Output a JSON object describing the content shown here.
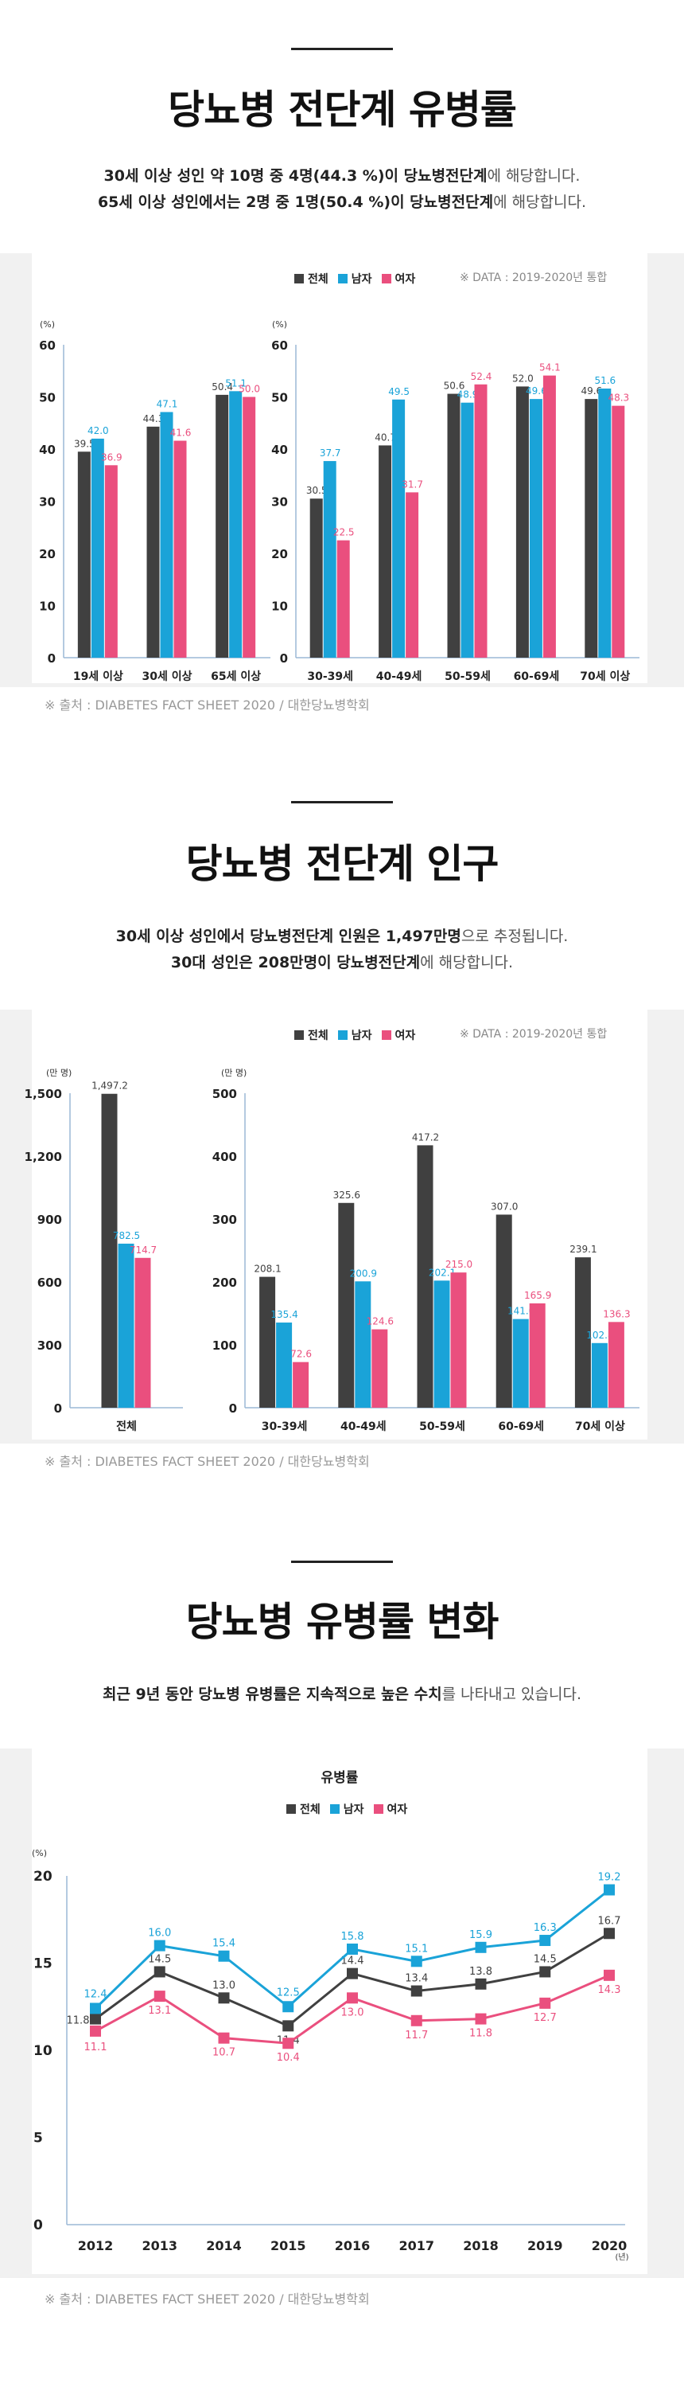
{
  "colors": {
    "total": "#404040",
    "male": "#1aa3d8",
    "female": "#ea4f7e",
    "background": "#f1f1f1"
  },
  "section1": {
    "title": "당뇨병 전단계 유병률",
    "desc_line1": {
      "a": "30세 이상 성인 약 10명 중 4명(44.3 %)이 당뇨병전단계",
      "b": "에 해당합니다."
    },
    "desc_line2": {
      "a": "65세 이상 성인에서는 2명 중 1명(50.4 %)이 당뇨병전단계",
      "b": "에 해당합니다."
    },
    "legend": {
      "total": "전체",
      "male": "남자",
      "female": "여자"
    },
    "data_note": "※ DATA : 2019-2020년 통합",
    "source": "※ 출처 : DIABETES FACT SHEET 2020 / 대한당뇨병학회"
  },
  "section2": {
    "title": "당뇨병 전단계 인구",
    "desc_line1": {
      "a": "30세 이상 성인에서 당뇨병전단계 인원은 1,497만명",
      "b": "으로 추정됩니다."
    },
    "desc_line2": {
      "a": "30대 성인은 208만명이 당뇨병전단계",
      "b": "에 해당합니다."
    },
    "legend": {
      "total": "전체",
      "male": "남자",
      "female": "여자"
    },
    "data_note": "※ DATA : 2019-2020년 통합",
    "source": "※ 출처 : DIABETES FACT SHEET 2020 / 대한당뇨병학회"
  },
  "section3": {
    "title": "당뇨병 유병률 변화",
    "desc_line1": {
      "a": "최근 9년 동안 당뇨병 유병률은 지속적으로 높은 수치",
      "b": "를 나타내고 있습니다."
    },
    "chart_title": "유병률",
    "legend": {
      "total": "전체",
      "male": "남자",
      "female": "여자"
    },
    "source": "※ 출처 : DIABETES FACT SHEET 2020 / 대한당뇨병학회"
  },
  "chart_data": [
    {
      "type": "bar",
      "ylabel": "(%)",
      "ylim": [
        0,
        60
      ],
      "yticks": [
        0,
        10,
        20,
        30,
        40,
        50,
        60
      ],
      "categories": [
        "19세 이상",
        "30세 이상",
        "65세 이상"
      ],
      "series": [
        {
          "name": "전체",
          "values": [
            39.5,
            44.3,
            50.4
          ]
        },
        {
          "name": "남자",
          "values": [
            42.0,
            47.1,
            51.1
          ]
        },
        {
          "name": "여자",
          "values": [
            36.9,
            41.6,
            50.0
          ]
        }
      ]
    },
    {
      "type": "bar",
      "ylabel": "(%)",
      "ylim": [
        0,
        60
      ],
      "yticks": [
        0,
        10,
        20,
        30,
        40,
        50,
        60
      ],
      "categories": [
        "30-39세",
        "40-49세",
        "50-59세",
        "60-69세",
        "70세 이상"
      ],
      "series": [
        {
          "name": "전체",
          "values": [
            30.5,
            40.7,
            50.6,
            52.0,
            49.6
          ]
        },
        {
          "name": "남자",
          "values": [
            37.7,
            49.5,
            48.9,
            49.6,
            51.6
          ]
        },
        {
          "name": "여자",
          "values": [
            22.5,
            31.7,
            52.4,
            54.1,
            48.3
          ]
        }
      ]
    },
    {
      "type": "bar",
      "ylabel": "(만 명)",
      "ylim": [
        0,
        1500
      ],
      "yticks": [
        0,
        300,
        600,
        900,
        1200,
        1500
      ],
      "ytick_labels": [
        "0",
        "300",
        "600",
        "900",
        "1,200",
        "1,500"
      ],
      "categories": [
        "전체"
      ],
      "series": [
        {
          "name": "전체",
          "values": [
            1497.2
          ]
        },
        {
          "name": "남자",
          "values": [
            782.5
          ]
        },
        {
          "name": "여자",
          "values": [
            714.7
          ]
        }
      ],
      "value_labels": [
        [
          "1,497.2"
        ],
        [
          "782.5"
        ],
        [
          "714.7"
        ]
      ]
    },
    {
      "type": "bar",
      "ylabel": "(만 명)",
      "ylim": [
        0,
        500
      ],
      "yticks": [
        0,
        100,
        200,
        300,
        400,
        500
      ],
      "categories": [
        "30-39세",
        "40-49세",
        "50-59세",
        "60-69세",
        "70세 이상"
      ],
      "series": [
        {
          "name": "전체",
          "values": [
            208.1,
            325.6,
            417.2,
            307.0,
            239.1
          ]
        },
        {
          "name": "남자",
          "values": [
            135.4,
            200.9,
            202.1,
            141.0,
            102.8
          ]
        },
        {
          "name": "여자",
          "values": [
            72.6,
            124.6,
            215.0,
            165.9,
            136.3
          ]
        }
      ]
    },
    {
      "type": "line",
      "title": "유병률",
      "ylabel": "(%)",
      "xlabel": "(년)",
      "ylim": [
        0,
        20
      ],
      "yticks": [
        0,
        5,
        10,
        15,
        20
      ],
      "x": [
        "2012",
        "2013",
        "2014",
        "2015",
        "2016",
        "2017",
        "2018",
        "2019",
        "2020"
      ],
      "series": [
        {
          "name": "전체",
          "values": [
            11.8,
            14.5,
            13.0,
            11.4,
            14.4,
            13.4,
            13.8,
            14.5,
            16.7
          ]
        },
        {
          "name": "남자",
          "values": [
            12.4,
            16.0,
            15.4,
            12.5,
            15.8,
            15.1,
            15.9,
            16.3,
            19.2
          ]
        },
        {
          "name": "여자",
          "values": [
            11.1,
            13.1,
            10.7,
            10.4,
            13.0,
            11.7,
            11.8,
            12.7,
            14.3
          ]
        }
      ]
    }
  ]
}
